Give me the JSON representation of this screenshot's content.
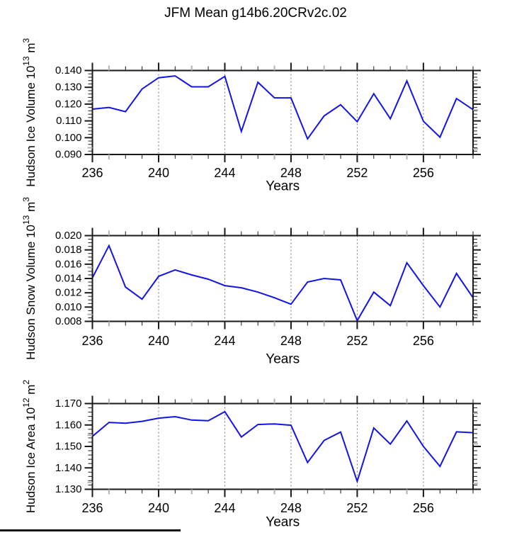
{
  "title": "JFM Mean g14b6.20CRv2c.02",
  "colors": {
    "line": "#1414e6",
    "axis": "#1a1a1a",
    "grid": "#757575",
    "gray_tick": "#b3b3b3",
    "text": "#000000",
    "background": "#ffffff"
  },
  "x_axis_shared": {
    "label": "Years",
    "range": [
      236,
      259
    ],
    "major_ticks": [
      236,
      240,
      244,
      248,
      252,
      256
    ],
    "minor_step": 1,
    "gridline_years": [
      240,
      244,
      248,
      252,
      256
    ],
    "gray_minor_years": [
      237,
      242,
      247,
      250,
      255
    ]
  },
  "chart_data": [
    {
      "type": "line",
      "name": "hudson-ice-volume",
      "ylabel": "Hudson Ice Volume 10¹³ m³",
      "ylabel_parts": [
        {
          "text": "Hudson Ice Volume 10"
        },
        {
          "text": "13",
          "sup": true
        },
        {
          "text": " m"
        },
        {
          "text": "3",
          "sup": true
        }
      ],
      "xlabel": "Years",
      "x": [
        236,
        237,
        238,
        239,
        240,
        241,
        242,
        243,
        244,
        245,
        246,
        247,
        248,
        249,
        250,
        251,
        252,
        253,
        254,
        255,
        256,
        257,
        258,
        259
      ],
      "values": [
        0.117,
        0.118,
        0.1155,
        0.129,
        0.1357,
        0.1368,
        0.1303,
        0.1303,
        0.1365,
        0.1037,
        0.133,
        0.1237,
        0.1237,
        0.0993,
        0.113,
        0.1196,
        0.1095,
        0.1262,
        0.1113,
        0.1338,
        0.1098,
        0.1003,
        0.1233,
        0.1167
      ],
      "ylim": [
        0.09,
        0.14
      ],
      "yticks": [
        0.09,
        0.1,
        0.11,
        0.12,
        0.13,
        0.14
      ],
      "ytick_labels": [
        "0.090",
        "0.100",
        "0.110",
        "0.120",
        "0.130",
        "0.140"
      ],
      "yminor_step": 0.002,
      "xlim": [
        236,
        259
      ],
      "xticks": [
        236,
        240,
        244,
        248,
        252,
        256
      ],
      "xgrid": [
        240,
        244,
        248,
        252,
        256
      ],
      "grid": "vertical-dashed",
      "legend": "none"
    },
    {
      "type": "line",
      "name": "hudson-snow-volume",
      "ylabel": "Hudson Snow Volume 10¹³ m³",
      "ylabel_parts": [
        {
          "text": "Hudson Snow Volume 10"
        },
        {
          "text": "13",
          "sup": true
        },
        {
          "text": " m"
        },
        {
          "text": "3",
          "sup": true
        }
      ],
      "xlabel": "Years",
      "x": [
        236,
        237,
        238,
        239,
        240,
        241,
        242,
        243,
        244,
        245,
        246,
        247,
        248,
        249,
        250,
        251,
        252,
        253,
        254,
        255,
        256,
        257,
        258,
        259
      ],
      "values": [
        0.0141,
        0.0186,
        0.0128,
        0.0111,
        0.0143,
        0.0152,
        0.0145,
        0.0139,
        0.013,
        0.0127,
        0.0121,
        0.0113,
        0.0104,
        0.0135,
        0.014,
        0.0138,
        0.0081,
        0.0121,
        0.0102,
        0.0162,
        0.013,
        0.01,
        0.0147,
        0.0113
      ],
      "ylim": [
        0.008,
        0.02
      ],
      "yticks": [
        0.008,
        0.01,
        0.012,
        0.014,
        0.016,
        0.018,
        0.02
      ],
      "ytick_labels": [
        "0.008",
        "0.010",
        "0.012",
        "0.014",
        "0.016",
        "0.018",
        "0.020"
      ],
      "yminor_step": 0.0005,
      "xlim": [
        236,
        259
      ],
      "xticks": [
        236,
        240,
        244,
        248,
        252,
        256
      ],
      "xgrid": [
        240,
        244,
        248,
        252,
        256
      ],
      "grid": "vertical-dashed",
      "legend": "none"
    },
    {
      "type": "line",
      "name": "hudson-ice-area",
      "ylabel": "Hudson Ice Area 10¹² m²",
      "ylabel_parts": [
        {
          "text": "Hudson Ice Area 10"
        },
        {
          "text": "12",
          "sup": true
        },
        {
          "text": " m"
        },
        {
          "text": "2",
          "sup": true
        }
      ],
      "xlabel": "Years",
      "x": [
        236,
        237,
        238,
        239,
        240,
        241,
        242,
        243,
        244,
        245,
        246,
        247,
        248,
        249,
        250,
        251,
        252,
        253,
        254,
        255,
        256,
        257,
        258,
        259
      ],
      "values": [
        1.1547,
        1.1612,
        1.1608,
        1.1617,
        1.1632,
        1.1639,
        1.1623,
        1.162,
        1.1662,
        1.1544,
        1.1602,
        1.1605,
        1.1599,
        1.1425,
        1.1528,
        1.1567,
        1.1337,
        1.1586,
        1.1511,
        1.1619,
        1.15,
        1.1407,
        1.1568,
        1.1564
      ],
      "ylim": [
        1.13,
        1.17
      ],
      "yticks": [
        1.13,
        1.14,
        1.15,
        1.16,
        1.17
      ],
      "ytick_labels": [
        "1.130",
        "1.140",
        "1.150",
        "1.160",
        "1.170"
      ],
      "yminor_step": 0.002,
      "xlim": [
        236,
        259
      ],
      "xticks": [
        236,
        240,
        244,
        248,
        252,
        256
      ],
      "xgrid": [
        240,
        244,
        248,
        252,
        256
      ],
      "grid": "vertical-dashed",
      "legend": "none"
    }
  ]
}
